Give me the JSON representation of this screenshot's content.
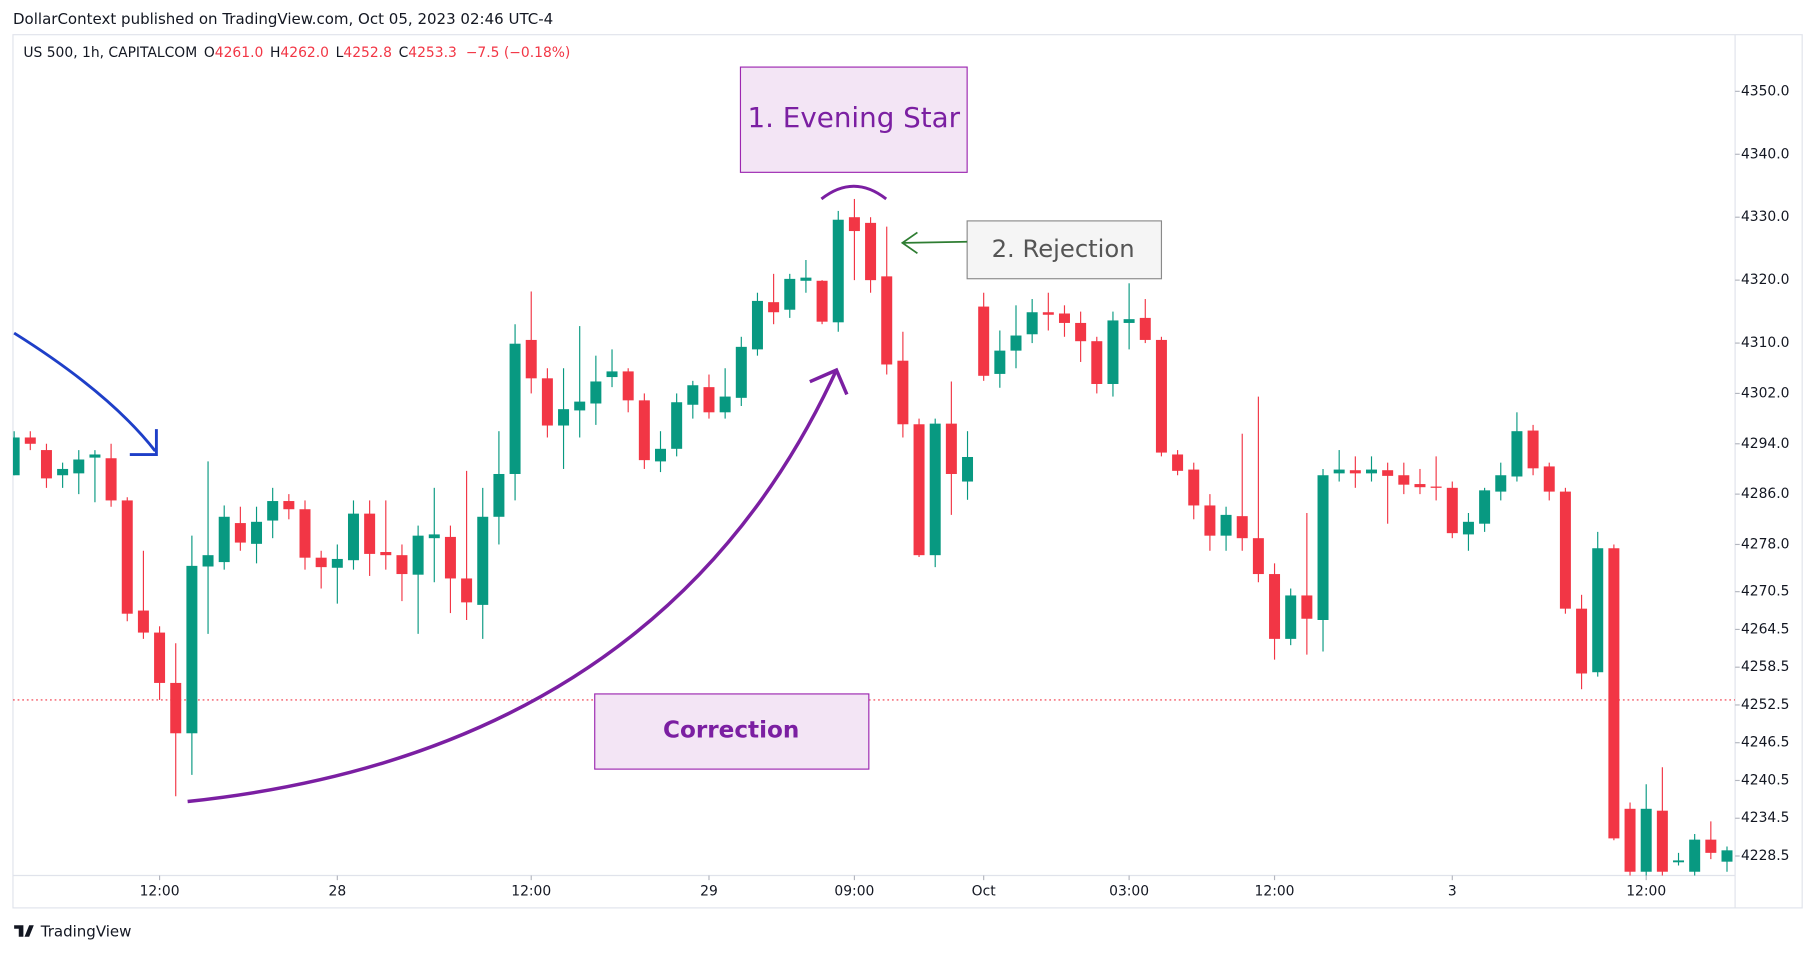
{
  "header": {
    "publisher": "DollarContext published on TradingView.com, Oct 05, 2023 02:46 UTC-4"
  },
  "footer": {
    "brand": "TradingView"
  },
  "annotations": {
    "evening_star": "1. Evening Star",
    "rejection": "2. Rejection",
    "correction": "Correction"
  },
  "chart_data": {
    "type": "candlestick",
    "legend": {
      "symbol": "US 500, 1h, CAPITALCOM",
      "open_label": "O",
      "open": "4261.0",
      "high_label": "H",
      "high": "4262.0",
      "low_label": "L",
      "low": "4252.8",
      "close_label": "C",
      "close": "4253.3",
      "change": "−7.5 (−0.18%)"
    },
    "up_color": "#089981",
    "down_color": "#f23645",
    "last_price": 4253.3,
    "last_price_color": "#f23645",
    "ylim": [
      4225.4,
      4359
    ],
    "yticks": [
      {
        "value": 4350,
        "label": "4350.0"
      },
      {
        "value": 4340,
        "label": "4340.0"
      },
      {
        "value": 4330,
        "label": "4330.0"
      },
      {
        "value": 4320,
        "label": "4320.0"
      },
      {
        "value": 4310,
        "label": "4310.0"
      },
      {
        "value": 4302,
        "label": "4302.0"
      },
      {
        "value": 4294,
        "label": "4294.0"
      },
      {
        "value": 4286,
        "label": "4286.0"
      },
      {
        "value": 4278,
        "label": "4278.0"
      },
      {
        "value": 4270.5,
        "label": "4270.5"
      },
      {
        "value": 4264.5,
        "label": "4264.5"
      },
      {
        "value": 4258.5,
        "label": "4258.5"
      },
      {
        "value": 4252.5,
        "label": "4252.5"
      },
      {
        "value": 4246.5,
        "label": "4246.5"
      },
      {
        "value": 4240.5,
        "label": "4240.5"
      },
      {
        "value": 4234.5,
        "label": "4234.5"
      },
      {
        "value": 4228.5,
        "label": "4228.5"
      }
    ],
    "categories": [
      null,
      null,
      null,
      null,
      null,
      null,
      null,
      null,
      null,
      "12:00",
      null,
      null,
      null,
      null,
      null,
      null,
      null,
      null,
      null,
      null,
      "28",
      null,
      null,
      null,
      null,
      null,
      null,
      null,
      null,
      null,
      null,
      null,
      "12:00",
      null,
      null,
      null,
      null,
      null,
      null,
      null,
      null,
      null,
      null,
      "29",
      null,
      null,
      null,
      null,
      null,
      null,
      null,
      null,
      "09:00",
      null,
      null,
      null,
      null,
      null,
      null,
      null,
      "Oct",
      null,
      null,
      null,
      null,
      null,
      null,
      null,
      null,
      "03:00",
      null,
      null,
      null,
      null,
      null,
      null,
      null,
      null,
      "12:00",
      null,
      null,
      null,
      null,
      null,
      null,
      null,
      null,
      null,
      null,
      "3",
      null,
      null,
      null,
      null,
      null,
      null,
      null,
      null,
      null,
      null,
      null,
      "12:00",
      null,
      null,
      null,
      null,
      null
    ],
    "open": [
      4289,
      4295,
      4293,
      4289,
      4289.3,
      4291.8,
      4291.7,
      4285,
      4267.5,
      4264,
      4256,
      4248,
      4274.5,
      4275.2,
      4281.4,
      4278.1,
      4281.8,
      4284.9,
      4283.6,
      4275.9,
      4274.3,
      4275.5,
      4282.9,
      4276.8,
      4276.3,
      4273.2,
      4279,
      4279.2,
      4272.6,
      4268.4,
      4282.4,
      4289.2,
      4310.5,
      4304.4,
      4296.9,
      4299.3,
      4300.4,
      4304.6,
      4305.5,
      4300.9,
      4291.2,
      4293.2,
      4300.2,
      4303,
      4299,
      4301.3,
      4309,
      4316.5,
      4315.3,
      4319.9,
      4319.9,
      4313.3,
      4330,
      4329.1,
      4320.6,
      4307.2,
      4297.1,
      4276.3,
      4297.2,
      4288,
      4315.8,
      4305.1,
      4308.8,
      4311.4,
      4314.9,
      4314.7,
      4313.2,
      4310.3,
      4303.5,
      4313.2,
      4314,
      4310.5,
      4292.3,
      4289.9,
      4284.2,
      4279.4,
      4282.5,
      4279,
      4273.3,
      4263,
      4269.9,
      4266,
      4289.3,
      4289.8,
      4289.3,
      4289.8,
      4289,
      4287.6,
      4287.2,
      4287,
      4279.6,
      4281.3,
      4286.4,
      4288.8,
      4296.1,
      4290.4,
      4286.4,
      4267.8,
      4257.7,
      4277.4,
      4236,
      4226,
      4235.7,
      4227.5,
      4226,
      4231.1,
      4227.6
    ],
    "high": [
      4296,
      4296,
      4294,
      4291,
      4293,
      4293,
      4294,
      4285.5,
      4277,
      4265,
      4262.3,
      4279.4,
      4291.2,
      4284.2,
      4284,
      4284,
      4287,
      4286,
      4285,
      4277,
      4278,
      4285,
      4285,
      4285,
      4278,
      4281,
      4287,
      4281,
      4289.7,
      4287,
      4296,
      4313,
      4318.2,
      4306,
      4306,
      4312.7,
      4308,
      4309,
      4306,
      4302,
      4296,
      4302,
      4304,
      4305,
      4306,
      4311,
      4318,
      4321,
      4321,
      4323.2,
      4320,
      4331,
      4332.9,
      4330,
      4328.5,
      4311.8,
      4298,
      4298,
      4303.9,
      4296,
      4318,
      4312,
      4316,
      4317,
      4318,
      4316,
      4315,
      4311,
      4315,
      4319.5,
      4317,
      4311,
      4293,
      4291,
      4286,
      4284,
      4295.6,
      4301.5,
      4275,
      4271,
      4283,
      4290,
      4293,
      4292,
      4292,
      4291,
      4291,
      4290,
      4292,
      4288,
      4283,
      4287,
      4291,
      4299,
      4297,
      4291,
      4287,
      4270,
      4280,
      4278,
      4237,
      4239.9,
      4242.6,
      4229,
      4232,
      4234,
      4230
    ],
    "low": [
      4289,
      4293,
      4287,
      4287,
      4286,
      4284.7,
      4284,
      4265.8,
      4263,
      4253.3,
      4238,
      4241.4,
      4263.8,
      4274,
      4277,
      4275,
      4279,
      4282,
      4274,
      4271,
      4268.6,
      4274,
      4273,
      4274,
      4269,
      4263.8,
      4272,
      4267.1,
      4266,
      4263,
      4278,
      4285,
      4302,
      4295,
      4290,
      4295,
      4297,
      4303,
      4299,
      4290,
      4289.5,
      4292,
      4298,
      4298,
      4298,
      4300,
      4308,
      4313,
      4314,
      4318,
      4313,
      4311.8,
      4320,
      4318,
      4305,
      4295,
      4276,
      4274.4,
      4282.7,
      4285.1,
      4304,
      4302.9,
      4306,
      4310,
      4312,
      4311,
      4307,
      4302,
      4301.5,
      4309,
      4310,
      4292,
      4289,
      4282,
      4277,
      4277,
      4277,
      4272,
      4259.7,
      4262,
      4260.5,
      4261,
      4288,
      4287,
      4288,
      4281.3,
      4286,
      4286,
      4285,
      4279,
      4277,
      4280,
      4285,
      4288,
      4289,
      4285,
      4267,
      4255,
      4257,
      4231,
      4225,
      4225,
      4225,
      4227,
      4225,
      4228,
      4226
    ],
    "close": [
      4295,
      4294,
      4288.5,
      4290,
      4291.5,
      4292.3,
      4285,
      4267,
      4264,
      4256,
      4248,
      4274.6,
      4276.3,
      4282.4,
      4278.3,
      4281.6,
      4284.9,
      4283.6,
      4275.9,
      4274.4,
      4275.7,
      4282.9,
      4276.5,
      4276.3,
      4273.3,
      4279.4,
      4279.6,
      4272.6,
      4268.8,
      4282.4,
      4289.2,
      4309.9,
      4304.4,
      4296.9,
      4299.5,
      4300.7,
      4303.9,
      4305.5,
      4300.9,
      4291.4,
      4293.2,
      4300.6,
      4303.3,
      4299,
      4301.5,
      4309.4,
      4316.7,
      4314.9,
      4320.2,
      4320.4,
      4313.4,
      4329.6,
      4327.8,
      4320,
      4306.6,
      4297.1,
      4276.3,
      4297.2,
      4289.2,
      4291.9,
      4304.8,
      4308.8,
      4311.2,
      4314.9,
      4314.5,
      4313.2,
      4310.3,
      4303.5,
      4313.6,
      4313.8,
      4310.5,
      4292.6,
      4289.7,
      4284.2,
      4279.4,
      4282.7,
      4279,
      4273.3,
      4263,
      4269.9,
      4266.2,
      4289,
      4289.9,
      4289.3,
      4289.9,
      4288.9,
      4287.5,
      4287.1,
      4287,
      4279.8,
      4281.6,
      4286.6,
      4289,
      4296,
      4290.1,
      4286.4,
      4267.8,
      4257.5,
      4277.4,
      4231.3,
      4226,
      4236,
      4226,
      4227.8,
      4231.1,
      4229,
      4229.4
    ]
  }
}
